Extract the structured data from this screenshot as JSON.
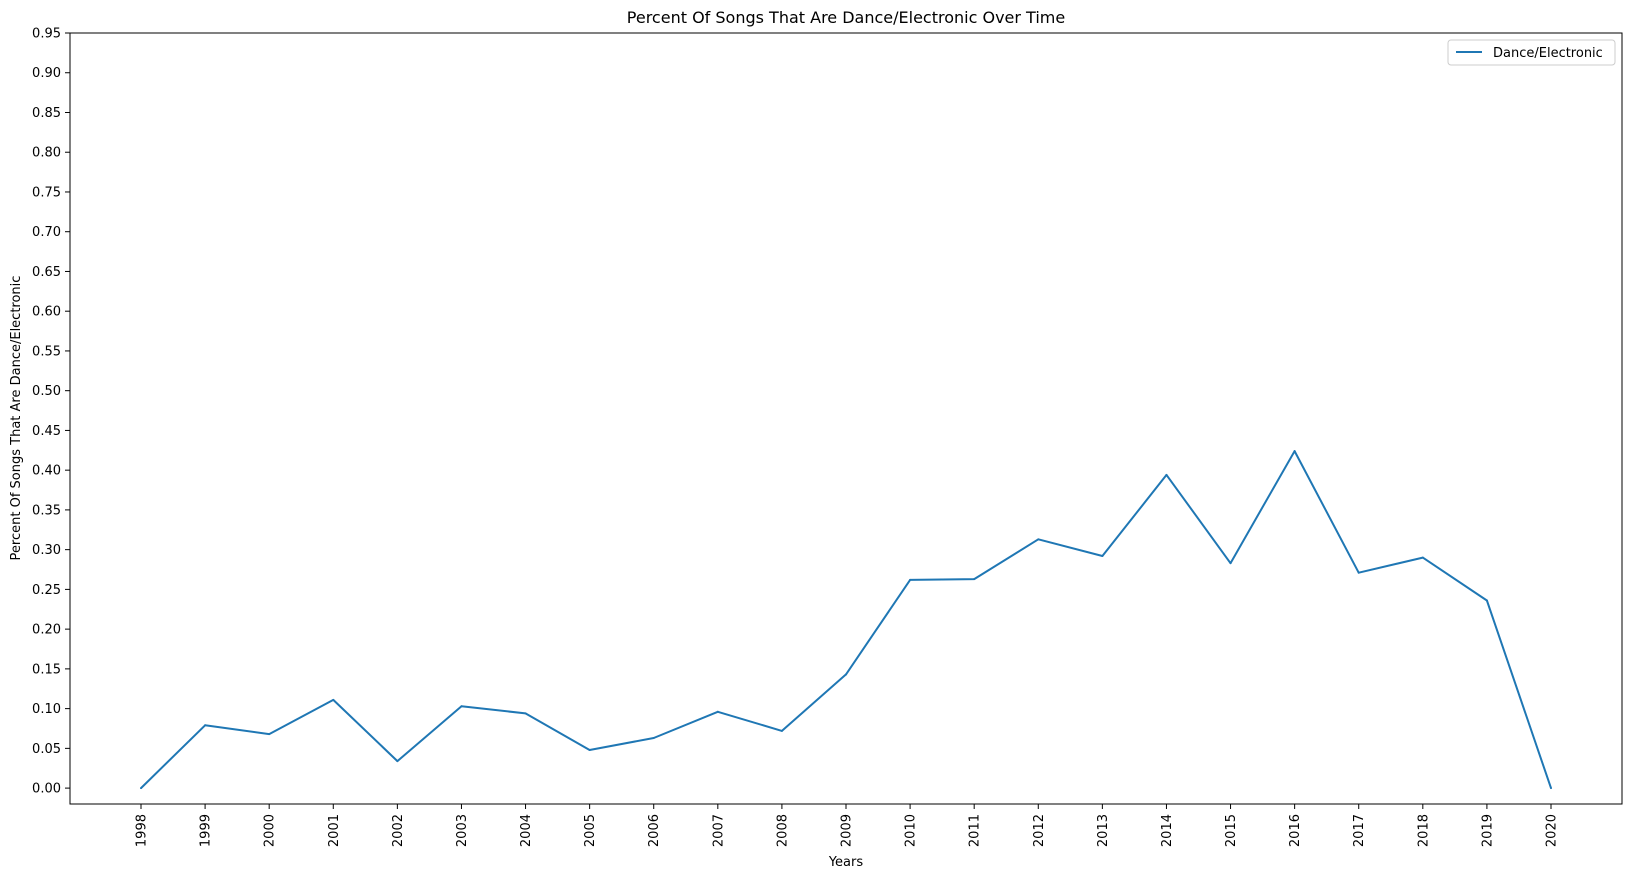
{
  "chart_data": {
    "type": "line",
    "title": "Percent Of Songs That Are Dance/Electronic Over Time",
    "xlabel": "Years",
    "ylabel": "Percent Of Songs That Are Dance/Electronic",
    "categories": [
      "1998",
      "1999",
      "2000",
      "2001",
      "2002",
      "2003",
      "2004",
      "2005",
      "2006",
      "2007",
      "2008",
      "2009",
      "2010",
      "2011",
      "2012",
      "2013",
      "2014",
      "2015",
      "2016",
      "2017",
      "2018",
      "2019",
      "2020"
    ],
    "series": [
      {
        "name": "Dance/Electronic",
        "color": "#1f77b4",
        "values": [
          0.0,
          0.079,
          0.068,
          0.111,
          0.034,
          0.103,
          0.094,
          0.048,
          0.063,
          0.096,
          0.072,
          0.143,
          0.262,
          0.263,
          0.313,
          0.292,
          0.394,
          0.283,
          0.424,
          0.271,
          0.29,
          0.236,
          0.0
        ]
      }
    ],
    "yticks": [
      "0.00",
      "0.05",
      "0.10",
      "0.15",
      "0.20",
      "0.25",
      "0.30",
      "0.35",
      "0.40",
      "0.45",
      "0.50",
      "0.55",
      "0.60",
      "0.65",
      "0.70",
      "0.75",
      "0.80",
      "0.85",
      "0.90",
      "0.95"
    ],
    "ylim": [
      -0.02,
      0.95
    ],
    "grid": false,
    "legend_position": "top-right"
  }
}
